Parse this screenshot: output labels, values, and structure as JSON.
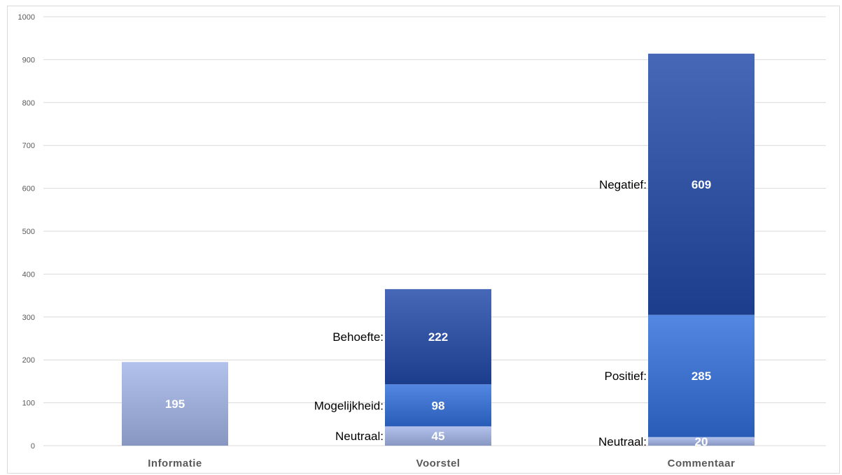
{
  "chart_data": {
    "type": "bar",
    "stacked": true,
    "title": "",
    "xlabel": "",
    "ylabel": "",
    "ylim": [
      0,
      1000
    ],
    "yticks": [
      0,
      100,
      200,
      300,
      400,
      500,
      600,
      700,
      800,
      900,
      1000
    ],
    "grid": true,
    "legend": "none",
    "categories": [
      "Informatie",
      "Voorstel",
      "Commentaar"
    ],
    "stacks": [
      {
        "category": "Informatie",
        "segments": [
          {
            "label": "",
            "value": 195,
            "color": "#9aa8d4"
          }
        ]
      },
      {
        "category": "Voorstel",
        "segments": [
          {
            "label": "Neutraal:",
            "value": 45,
            "color": "#9aa8d4"
          },
          {
            "label": "Mogelijkheid:",
            "value": 98,
            "color": "#3a6ec9"
          },
          {
            "label": "Behoefte:",
            "value": 222,
            "color": "#2d4f9e"
          }
        ]
      },
      {
        "category": "Commentaar",
        "segments": [
          {
            "label": "Neutraal:",
            "value": 20,
            "color": "#9aa8d4"
          },
          {
            "label": "Positief:",
            "value": 285,
            "color": "#3a6ec9"
          },
          {
            "label": "Negatief:",
            "value": 609,
            "color": "#2d4f9e"
          }
        ]
      }
    ]
  }
}
